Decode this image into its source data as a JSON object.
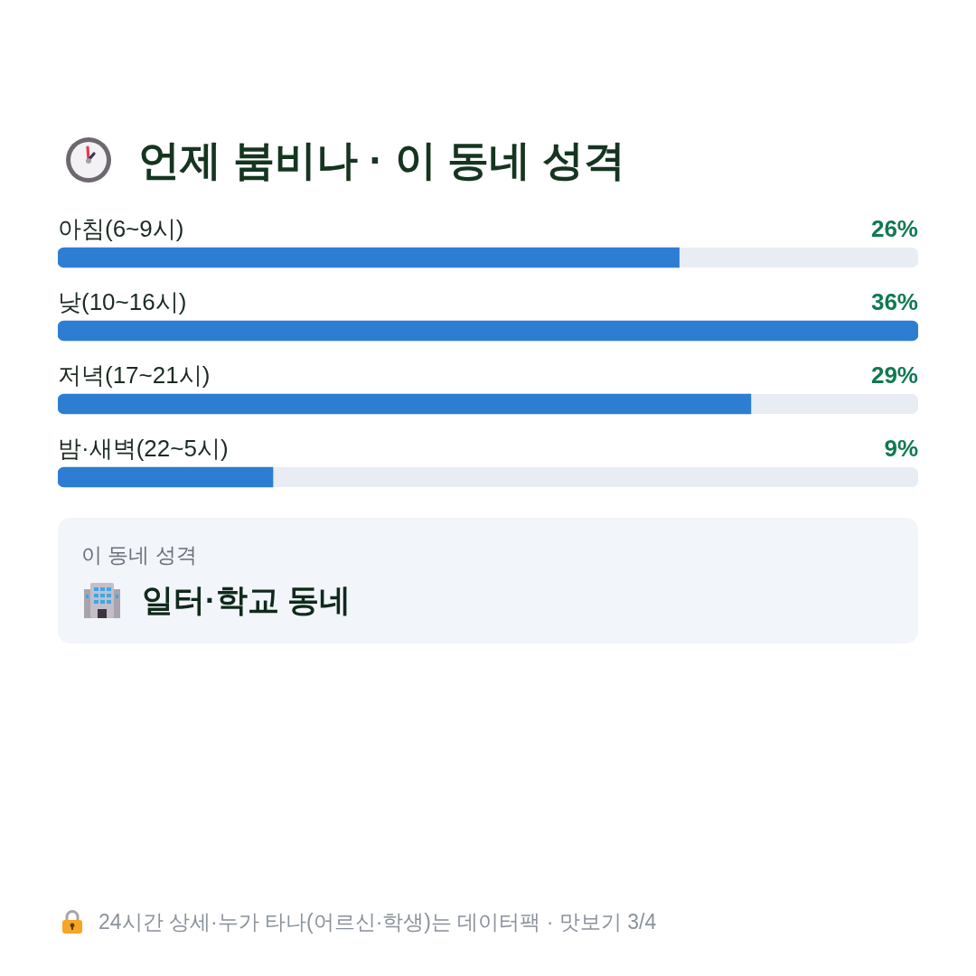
{
  "chart_data": {
    "type": "bar",
    "orientation": "horizontal",
    "title": "언제 붐비나 · 이 동네 성격",
    "categories": [
      "아침(6~9시)",
      "낮(10~16시)",
      "저녁(17~21시)",
      "밤·새벽(22~5시)"
    ],
    "values": [
      26,
      36,
      29,
      9
    ],
    "value_labels": [
      "26%",
      "36%",
      "29%",
      "9%"
    ],
    "color": "#2d7dd2",
    "xlim": [
      0,
      36
    ],
    "tick_labels": "y",
    "annotations": [
      "이 동네 성격",
      "일터·학교 동네",
      "24시간 상세·누가 타나(어르신·학생)는 데이터팩 · 맛보기 3/4"
    ]
  }
}
